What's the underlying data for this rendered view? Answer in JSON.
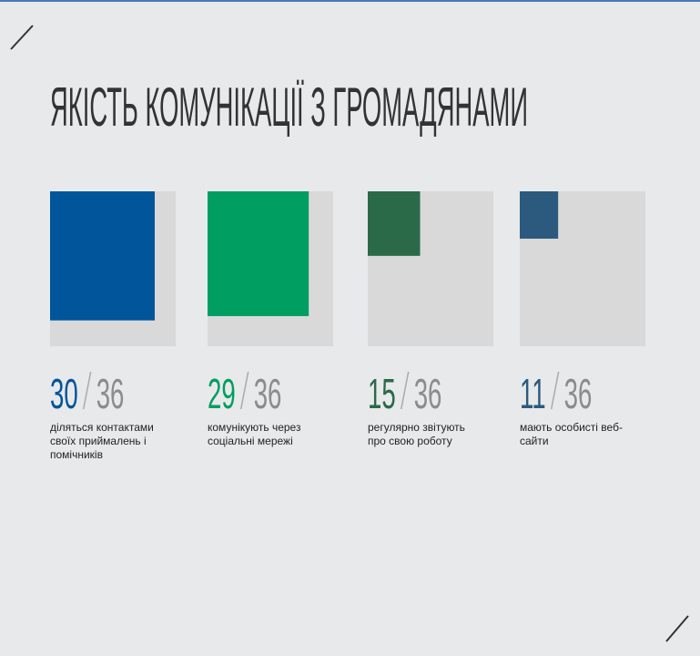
{
  "chart_data": {
    "type": "proportional-area",
    "title": "ЯКІСТЬ КОМУНІКАЦІЇ З ГРОМАДЯНАМИ",
    "background_color": "#d9d9d9",
    "total_color": "#8c8c8c",
    "items": [
      {
        "value": 30,
        "total": 36,
        "color": "#00559b",
        "label": "діляться контактами своїх приймалень і помічників"
      },
      {
        "value": 29,
        "total": 36,
        "color": "#009e61",
        "label": "комунікують через соціальні мережі"
      },
      {
        "value": 15,
        "total": 36,
        "color": "#2a6a48",
        "label": "регулярно звітують про свою роботу"
      },
      {
        "value": 11,
        "total": 36,
        "color": "#2c5a7e",
        "label": "мають особисті веб-сайти"
      }
    ]
  }
}
